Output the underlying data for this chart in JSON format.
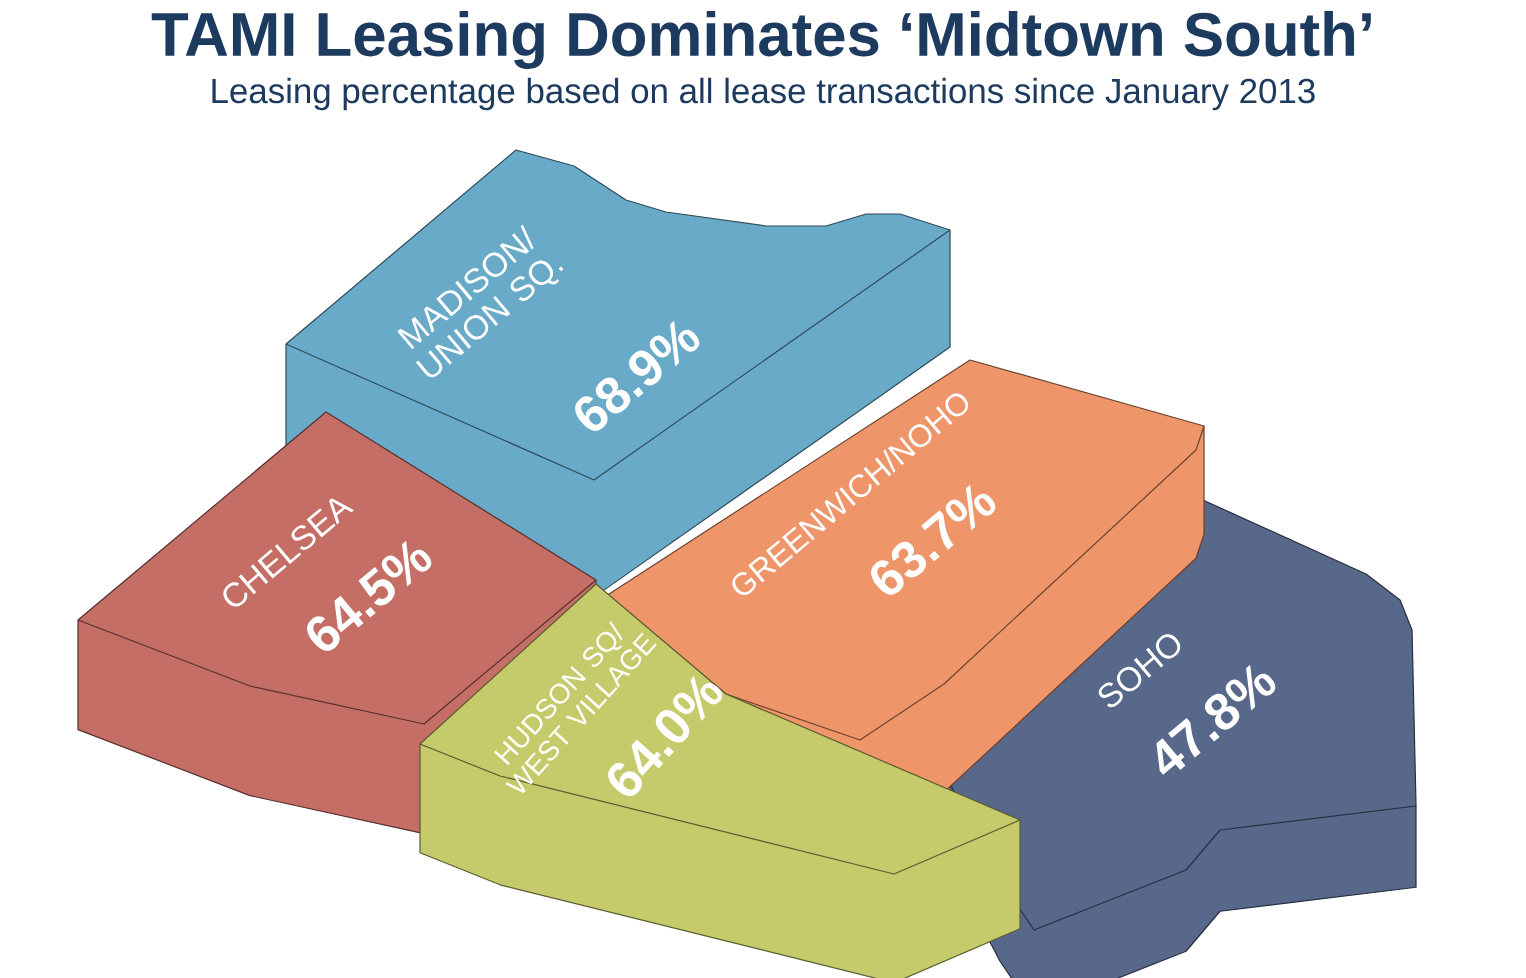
{
  "chart_data": {
    "type": "other",
    "title": "TAMI Leasing Dominates ‘Midtown South’",
    "subtitle": "Leasing percentage based on all lease transactions since January 2013",
    "categories": [
      "MADISON/ UNION SQ.",
      "CHELSEA",
      "GREENWICH/NOHO",
      "HUDSON SQ/ WEST VILLAGE",
      "SOHO"
    ],
    "values": [
      68.9,
      64.5,
      63.7,
      64.0,
      47.8
    ],
    "value_labels": [
      "68.9%",
      "64.5%",
      "63.7%",
      "64.0%",
      "47.8%"
    ],
    "colors": [
      "#68aac8",
      "#c46e66",
      "#ef956a",
      "#c5ca6a",
      "#57688a"
    ]
  }
}
